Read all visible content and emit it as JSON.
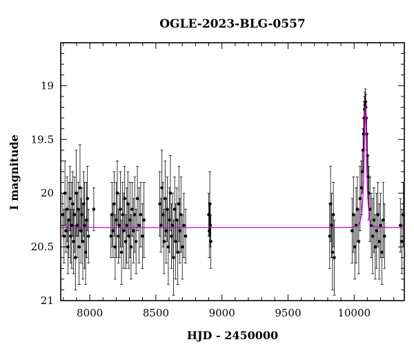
{
  "chart_data": {
    "type": "scatter",
    "title": "OGLE-2023-BLG-0557",
    "xlabel": "HJD - 2450000",
    "ylabel": "I magnitude",
    "xlim": [
      7780,
      10380
    ],
    "ylim": [
      21,
      18.6
    ],
    "y_inverted": true,
    "x_ticks": [
      8000,
      8500,
      9000,
      9500,
      10000
    ],
    "y_ticks": [
      19,
      19.5,
      20,
      20.5,
      21
    ],
    "x_tick_labels": [
      "8000",
      "8500",
      "9000",
      "9500",
      "10000"
    ],
    "y_tick_labels": [
      "19",
      "19.5",
      "20",
      "20.5",
      "21"
    ],
    "grid": false,
    "colors": {
      "points": "#000000",
      "model": "#cc00cc"
    },
    "model": {
      "baseline": 20.32,
      "peak_time": 10085,
      "peak_mag": 19.18,
      "timescale_days": 22
    },
    "series": [
      {
        "points": [
          [
            7795,
            20.2,
            0.2
          ],
          [
            7805,
            20.4,
            0.25
          ],
          [
            7812,
            20.0,
            0.3
          ],
          [
            7820,
            20.35,
            0.2
          ],
          [
            7828,
            20.15,
            0.3
          ],
          [
            7835,
            20.5,
            0.25
          ],
          [
            7842,
            20.25,
            0.35
          ],
          [
            7850,
            20.05,
            0.3
          ],
          [
            7856,
            20.4,
            0.25
          ],
          [
            7863,
            20.3,
            0.4
          ],
          [
            7870,
            20.1,
            0.3
          ],
          [
            7877,
            20.45,
            0.3
          ],
          [
            7884,
            20.2,
            0.35
          ],
          [
            7891,
            20.6,
            0.3
          ],
          [
            7898,
            20.0,
            0.4
          ],
          [
            7905,
            20.3,
            0.3
          ],
          [
            7912,
            20.15,
            0.25
          ],
          [
            7919,
            20.5,
            0.35
          ],
          [
            7926,
            19.95,
            0.4
          ],
          [
            7933,
            20.35,
            0.3
          ],
          [
            7940,
            20.2,
            0.25
          ],
          [
            7947,
            20.45,
            0.35
          ],
          [
            7954,
            20.1,
            0.3
          ],
          [
            7961,
            20.3,
            0.4
          ],
          [
            7968,
            20.55,
            0.3
          ],
          [
            7975,
            20.25,
            0.35
          ],
          [
            7982,
            20.05,
            0.3
          ],
          [
            7990,
            20.4,
            0.25
          ],
          [
            8030,
            20.15,
            0.2
          ],
          [
            8160,
            20.4,
            0.2
          ],
          [
            8168,
            20.2,
            0.3
          ],
          [
            8176,
            20.35,
            0.25
          ],
          [
            8184,
            20.1,
            0.3
          ],
          [
            8192,
            20.5,
            0.3
          ],
          [
            8200,
            20.25,
            0.35
          ],
          [
            8208,
            20.0,
            0.3
          ],
          [
            8216,
            20.4,
            0.25
          ],
          [
            8224,
            20.3,
            0.3
          ],
          [
            8232,
            20.15,
            0.35
          ],
          [
            8240,
            20.55,
            0.3
          ],
          [
            8248,
            20.2,
            0.3
          ],
          [
            8256,
            20.35,
            0.35
          ],
          [
            8264,
            20.05,
            0.3
          ],
          [
            8272,
            20.45,
            0.25
          ],
          [
            8280,
            20.3,
            0.35
          ],
          [
            8288,
            20.1,
            0.3
          ],
          [
            8296,
            20.4,
            0.3
          ],
          [
            8304,
            20.25,
            0.35
          ],
          [
            8312,
            20.5,
            0.3
          ],
          [
            8320,
            20.15,
            0.25
          ],
          [
            8330,
            20.35,
            0.3
          ],
          [
            8340,
            20.2,
            0.35
          ],
          [
            8350,
            20.45,
            0.3
          ],
          [
            8360,
            20.05,
            0.3
          ],
          [
            8372,
            20.3,
            0.35
          ],
          [
            8385,
            20.2,
            0.3
          ],
          [
            8398,
            20.4,
            0.3
          ],
          [
            8410,
            20.25,
            0.35
          ],
          [
            8530,
            20.1,
            0.3
          ],
          [
            8538,
            20.3,
            0.25
          ],
          [
            8546,
            19.95,
            0.35
          ],
          [
            8554,
            20.2,
            0.3
          ],
          [
            8562,
            20.45,
            0.3
          ],
          [
            8570,
            20.05,
            0.35
          ],
          [
            8578,
            20.35,
            0.3
          ],
          [
            8586,
            20.15,
            0.3
          ],
          [
            8594,
            20.5,
            0.35
          ],
          [
            8602,
            20.25,
            0.3
          ],
          [
            8610,
            20.0,
            0.35
          ],
          [
            8618,
            20.4,
            0.3
          ],
          [
            8626,
            20.3,
            0.3
          ],
          [
            8634,
            20.6,
            0.35
          ],
          [
            8642,
            20.15,
            0.3
          ],
          [
            8650,
            20.45,
            0.35
          ],
          [
            8658,
            20.25,
            0.3
          ],
          [
            8666,
            20.55,
            0.3
          ],
          [
            8674,
            20.1,
            0.35
          ],
          [
            8682,
            20.35,
            0.3
          ],
          [
            8690,
            20.2,
            0.35
          ],
          [
            8700,
            20.5,
            0.3
          ],
          [
            8712,
            20.3,
            0.3
          ],
          [
            8725,
            20.4,
            0.25
          ],
          [
            8900,
            20.2,
            0.2
          ],
          [
            8904,
            20.35,
            0.25
          ],
          [
            8908,
            20.1,
            0.3
          ],
          [
            8912,
            20.3,
            0.2
          ],
          [
            8916,
            20.45,
            0.25
          ],
          [
            9815,
            20.4,
            0.3
          ],
          [
            9822,
            20.1,
            0.35
          ],
          [
            9829,
            20.3,
            0.3
          ],
          [
            9836,
            20.55,
            0.35
          ],
          [
            9843,
            20.2,
            0.3
          ],
          [
            9850,
            20.6,
            0.35
          ],
          [
            9985,
            20.35,
            0.3
          ],
          [
            9995,
            20.2,
            0.35
          ],
          [
            10005,
            20.5,
            0.3
          ],
          [
            10015,
            20.3,
            0.35
          ],
          [
            10025,
            20.15,
            0.3
          ],
          [
            10035,
            20.45,
            0.3
          ],
          [
            10045,
            20.05,
            0.3
          ],
          [
            10055,
            19.95,
            0.25
          ],
          [
            10062,
            19.8,
            0.2
          ],
          [
            10068,
            19.6,
            0.2
          ],
          [
            10072,
            19.45,
            0.15
          ],
          [
            10076,
            19.3,
            0.15
          ],
          [
            10079,
            19.22,
            0.12
          ],
          [
            10082,
            19.18,
            0.12
          ],
          [
            10085,
            19.15,
            0.12
          ],
          [
            10088,
            19.2,
            0.12
          ],
          [
            10091,
            19.3,
            0.15
          ],
          [
            10095,
            19.45,
            0.15
          ],
          [
            10100,
            19.65,
            0.2
          ],
          [
            10106,
            19.85,
            0.2
          ],
          [
            10112,
            20.0,
            0.25
          ],
          [
            10120,
            20.15,
            0.3
          ],
          [
            10130,
            20.3,
            0.3
          ],
          [
            10140,
            20.4,
            0.35
          ],
          [
            10150,
            20.25,
            0.3
          ],
          [
            10160,
            20.5,
            0.3
          ],
          [
            10170,
            20.35,
            0.35
          ],
          [
            10180,
            20.2,
            0.3
          ],
          [
            10190,
            20.45,
            0.35
          ],
          [
            10200,
            20.3,
            0.3
          ],
          [
            10210,
            20.55,
            0.3
          ],
          [
            10220,
            20.25,
            0.35
          ],
          [
            10230,
            20.4,
            0.3
          ],
          [
            10350,
            20.3,
            0.25
          ],
          [
            10362,
            20.45,
            0.3
          ],
          [
            10372,
            20.2,
            0.3
          ]
        ]
      }
    ]
  }
}
